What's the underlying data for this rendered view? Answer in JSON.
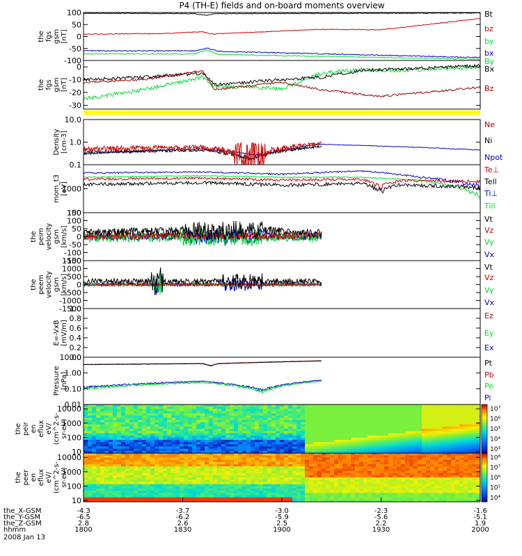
{
  "title": "P4 (TH-E) fields and on-board moments overview",
  "colors": {
    "black": "#000000",
    "red": "#cc0000",
    "dark_red": "#990000",
    "blue": "#0000cc",
    "green": "#00dd33",
    "yellow": "#ffff00"
  },
  "chart_data": {
    "type": "line",
    "time_axis": {
      "ticks": [
        "1800",
        "1830",
        "1900",
        "1930",
        "2000"
      ],
      "rows": [
        {
          "label": "the_X-GSM",
          "values": [
            "-4.3",
            "-3.7",
            "-3.0",
            "-2.3",
            "-1.6"
          ]
        },
        {
          "label": "the_Y-GSM",
          "values": [
            "-6.5",
            "-6.2",
            "-5.9",
            "-5.6",
            "-5.1"
          ]
        },
        {
          "label": "the_Z-GSM",
          "values": [
            "2.8",
            "2.6",
            "2.5",
            "2.2",
            "1.9"
          ]
        },
        {
          "label": "hhmm",
          "values": [
            "1800",
            "1830",
            "1900",
            "1930",
            "2000"
          ]
        }
      ],
      "date": "2008 Jan 13"
    },
    "panels": [
      {
        "id": "fgs1",
        "ylabel": [
          "the",
          "fgs",
          "gsm",
          "[nT]"
        ],
        "scale": "linear",
        "ylim": [
          -100,
          100
        ],
        "ticks": [
          {
            "v": 100,
            "t": "100"
          },
          {
            "v": 50,
            "t": "50"
          },
          {
            "v": 0,
            "t": "0"
          },
          {
            "v": -50,
            "t": "-50"
          },
          {
            "v": -100,
            "t": "-100"
          }
        ],
        "legend": [
          {
            "name": "Bt",
            "color": "#000000"
          },
          {
            "name": "bz",
            "color": "#cc0000"
          },
          {
            "name": "by",
            "color": "#00dd33"
          },
          {
            "name": "bx",
            "color": "#0000cc"
          }
        ]
      },
      {
        "id": "fgs2",
        "ylabel": [
          "the",
          "fgs",
          "gsm",
          "[nT]"
        ],
        "scale": "linear",
        "ylim": [
          -33,
          5
        ],
        "ticks": [
          {
            "v": 0,
            "t": "0"
          },
          {
            "v": -10,
            "t": "-10"
          },
          {
            "v": -20,
            "t": "-20"
          },
          {
            "v": -30,
            "t": "-30"
          }
        ],
        "legend": [
          {
            "name": "By",
            "color": "#00dd33"
          },
          {
            "name": "Bx",
            "color": "#000000"
          },
          {
            "name": "Bz",
            "color": "#990000"
          }
        ]
      },
      {
        "id": "density",
        "ylabel": [
          "Density",
          "[cm-3]"
        ],
        "scale": "log",
        "ylim": [
          0.1,
          10
        ],
        "ticks": [
          {
            "v": 10,
            "t": "10.0"
          },
          {
            "v": 1,
            "t": "1.0"
          },
          {
            "v": 0.1,
            "t": "0.1"
          }
        ],
        "legend": [
          {
            "name": "Ne",
            "color": "#990000"
          },
          {
            "name": "Ni",
            "color": "#000000"
          },
          {
            "name": "Npot",
            "color": "#0000cc"
          }
        ]
      },
      {
        "id": "temp",
        "ylabel": [
          "mom_t3",
          "[eV]"
        ],
        "scale": "log",
        "ylim": [
          100,
          10000
        ],
        "ticks": [
          {
            "v": 1000,
            "t": "1000"
          },
          {
            "v": 100,
            "t": "100"
          }
        ],
        "legend": [
          {
            "name": "Te⊥",
            "color": "#cc0000"
          },
          {
            "name": "Tell",
            "color": "#000000"
          },
          {
            "name": "Ti⊥",
            "color": "#0000cc"
          },
          {
            "name": "Till",
            "color": "#00dd33"
          }
        ]
      },
      {
        "id": "peim",
        "ylabel": [
          "the",
          "peim",
          "velocity",
          "gsm",
          "[km/s]"
        ],
        "scale": "linear",
        "ylim": [
          -150,
          150
        ],
        "ticks": [
          {
            "v": 150,
            "t": "150"
          },
          {
            "v": 100,
            "t": "100"
          },
          {
            "v": 50,
            "t": "50"
          },
          {
            "v": 0,
            "t": "0"
          },
          {
            "v": -50,
            "t": "-50"
          },
          {
            "v": -100,
            "t": "-100"
          },
          {
            "v": -150,
            "t": "-150"
          }
        ],
        "legend": [
          {
            "name": "Vt",
            "color": "#000000"
          },
          {
            "name": "Vz",
            "color": "#cc0000"
          },
          {
            "name": "Vy",
            "color": "#00dd33"
          },
          {
            "name": "Vx",
            "color": "#0000cc"
          }
        ]
      },
      {
        "id": "peem",
        "ylabel": [
          "the",
          "peem",
          "velocity",
          "gsm",
          "[km/s]"
        ],
        "scale": "linear",
        "ylim": [
          -1500,
          1500
        ],
        "ticks": [
          {
            "v": 1500,
            "t": "1500"
          },
          {
            "v": 1000,
            "t": "1000"
          },
          {
            "v": 500,
            "t": "500"
          },
          {
            "v": 0,
            "t": "0"
          },
          {
            "v": -500,
            "t": "-500"
          },
          {
            "v": -1000,
            "t": "-1000"
          },
          {
            "v": -1500,
            "t": "-1500"
          }
        ],
        "legend": [
          {
            "name": "Vt",
            "color": "#000000"
          },
          {
            "name": "Vz",
            "color": "#cc0000"
          },
          {
            "name": "Vy",
            "color": "#00dd33"
          },
          {
            "name": "Vx",
            "color": "#0000cc"
          }
        ]
      },
      {
        "id": "efield",
        "ylabel": [
          "E=-VxB",
          "[mV/m]"
        ],
        "scale": "linear",
        "ylim": [
          0,
          1
        ],
        "ticks": [
          {
            "v": 1,
            "t": "1.0"
          },
          {
            "v": 0.8,
            "t": "0.8"
          },
          {
            "v": 0.6,
            "t": "0.6"
          },
          {
            "v": 0.4,
            "t": "0.4"
          },
          {
            "v": 0.2,
            "t": "0.2"
          },
          {
            "v": 0,
            "t": "0.0"
          }
        ],
        "legend": [
          {
            "name": "Ez",
            "color": "#cc0000"
          },
          {
            "name": "Ey",
            "color": "#00dd33"
          },
          {
            "name": "Ex",
            "color": "#0000cc"
          }
        ]
      },
      {
        "id": "pressure",
        "ylabel": [
          "Pressure",
          "[nPa]"
        ],
        "scale": "log",
        "ylim": [
          0.01,
          10
        ],
        "ticks": [
          {
            "v": 10,
            "t": "10.00"
          },
          {
            "v": 1,
            "t": "1.00"
          },
          {
            "v": 0.1,
            "t": "0.10"
          },
          {
            "v": 0.01,
            "t": "0.01"
          }
        ],
        "legend": [
          {
            "name": "Pt",
            "color": "#000000"
          },
          {
            "name": "Pb",
            "color": "#cc0000"
          },
          {
            "name": "Pe",
            "color": "#00dd33"
          },
          {
            "name": "Pi",
            "color": "#0000cc"
          }
        ]
      },
      {
        "id": "peir",
        "ylabel": [
          "the",
          "peir",
          "en",
          "eflux",
          "eV/",
          "(cm^2-s-",
          "sr-eV)"
        ],
        "scale": "log",
        "ylim": [
          8,
          20000
        ],
        "ticks": [
          {
            "v": 10000,
            "t": "10000"
          },
          {
            "v": 1000,
            "t": "1000"
          },
          {
            "v": 100,
            "t": "100"
          },
          {
            "v": 10,
            "t": "10"
          }
        ],
        "colorbar": {
          "ticks": [
            "10⁷",
            "10⁶",
            "10⁵",
            "10⁴",
            "10³"
          ]
        }
      },
      {
        "id": "peer",
        "ylabel": [
          "the",
          "peer",
          "en",
          "eflux",
          "eV/",
          "(cm^2-s-",
          "sr-eV)"
        ],
        "scale": "log",
        "ylim": [
          8,
          20000
        ],
        "ticks": [
          {
            "v": 10000,
            "t": "10000"
          },
          {
            "v": 1000,
            "t": "1000"
          },
          {
            "v": 100,
            "t": "100"
          },
          {
            "v": 10,
            "t": "10"
          }
        ],
        "colorbar": {
          "ticks": [
            "10⁸",
            "10⁷",
            "10⁶",
            "10⁵",
            "10⁴"
          ]
        }
      }
    ]
  }
}
